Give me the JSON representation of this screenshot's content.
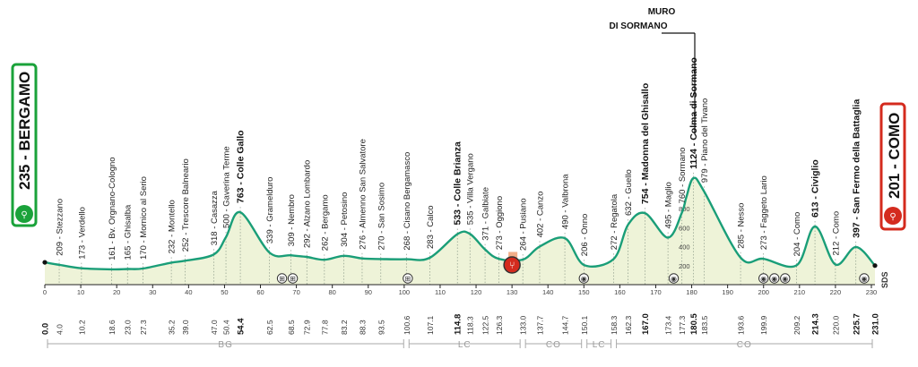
{
  "chart_data": {
    "type": "area",
    "title": "",
    "xlabel": "",
    "ylabel": "",
    "xlim": [
      0,
      231
    ],
    "ylim": [
      0,
      1200
    ],
    "grid": false,
    "colors": {
      "line": "#1a9e78",
      "fill": "#eef3d8",
      "feed_zone": "#f0a074",
      "feed_icon": "#d42b1e",
      "start_border": "#1aa23a",
      "finish_border": "#d42b1e"
    },
    "x_ticks": [
      0,
      10,
      20,
      30,
      40,
      50,
      60,
      70,
      80,
      90,
      100,
      110,
      120,
      130,
      140,
      150,
      160,
      170,
      180,
      190,
      200,
      210,
      220,
      230
    ],
    "y_ticks": [
      200,
      400,
      600,
      800
    ],
    "profile": [
      [
        0,
        235
      ],
      [
        4,
        209
      ],
      [
        10.2,
        173
      ],
      [
        18.6,
        161
      ],
      [
        23,
        165
      ],
      [
        27.3,
        170
      ],
      [
        35.2,
        232
      ],
      [
        39,
        252
      ],
      [
        47,
        318
      ],
      [
        50.4,
        500
      ],
      [
        54.4,
        763
      ],
      [
        62.5,
        339
      ],
      [
        68.5,
        309
      ],
      [
        72.9,
        292
      ],
      [
        77.8,
        262
      ],
      [
        83.2,
        304
      ],
      [
        88.3,
        276
      ],
      [
        93.5,
        270
      ],
      [
        100.6,
        268
      ],
      [
        107.1,
        283
      ],
      [
        114.8,
        533
      ],
      [
        118.3,
        535
      ],
      [
        122.5,
        371
      ],
      [
        126.3,
        273
      ],
      [
        133,
        264
      ],
      [
        137.7,
        402
      ],
      [
        144.7,
        490
      ],
      [
        150.1,
        206
      ],
      [
        158.3,
        272
      ],
      [
        162.3,
        632
      ],
      [
        167,
        754
      ],
      [
        173.4,
        495
      ],
      [
        177.3,
        760
      ],
      [
        178.5,
        920
      ],
      [
        180.5,
        1124
      ],
      [
        183.5,
        979
      ],
      [
        193.6,
        285
      ],
      [
        199.9,
        273
      ],
      [
        209.2,
        204
      ],
      [
        214.3,
        613
      ],
      [
        220,
        212
      ],
      [
        225.7,
        397
      ],
      [
        231,
        201
      ]
    ],
    "start": {
      "elevation": "235",
      "name": "BERGAMO"
    },
    "finish": {
      "elevation": "201",
      "name": "COMO"
    },
    "muro_line1": "MURO",
    "muro_line2": "DI SORMANO",
    "sds_label": "SDS",
    "feed_zone": [
      129,
      131.5
    ],
    "icon_markers": [
      [
        66,
        "⊞"
      ],
      [
        69,
        "⊞"
      ],
      [
        101,
        "⊞"
      ],
      [
        130,
        "ⓕ"
      ],
      [
        150,
        "◉"
      ],
      [
        175,
        "◉"
      ],
      [
        200,
        "◉"
      ],
      [
        203,
        "◉"
      ],
      [
        206,
        "◉"
      ],
      [
        228,
        "◉"
      ]
    ],
    "waypoints": [
      {
        "km": 4,
        "elev": 209,
        "text": "209 - Stezzano",
        "bold": false
      },
      {
        "km": 10.2,
        "elev": 173,
        "text": "173 - Verdello",
        "bold": false
      },
      {
        "km": 18.6,
        "elev": 161,
        "text": "161 - Bv. Orgnano-Cologno",
        "bold": false
      },
      {
        "km": 23,
        "elev": 165,
        "text": "165 - Ghisalba",
        "bold": false
      },
      {
        "km": 27.3,
        "elev": 170,
        "text": "170 - Mornico al Serio",
        "bold": false
      },
      {
        "km": 35.2,
        "elev": 232,
        "text": "232 - Montello",
        "bold": false
      },
      {
        "km": 39,
        "elev": 252,
        "text": "252 - Trescore Balneario",
        "bold": false
      },
      {
        "km": 47,
        "elev": 318,
        "text": "318 - Casazza",
        "bold": false
      },
      {
        "km": 50.4,
        "elev": 500,
        "text": "500 - Gaverina Terme",
        "bold": false
      },
      {
        "km": 54.4,
        "elev": 763,
        "text": "763 - Colle Gallo",
        "bold": true
      },
      {
        "km": 62.5,
        "elev": 339,
        "text": "339 - Gramelduro",
        "bold": false
      },
      {
        "km": 68.5,
        "elev": 309,
        "text": "309 - Nembro",
        "bold": false
      },
      {
        "km": 72.9,
        "elev": 292,
        "text": "292 - Alzano Lombardo",
        "bold": false
      },
      {
        "km": 77.8,
        "elev": 262,
        "text": "262 - Bergamo",
        "bold": false
      },
      {
        "km": 83.2,
        "elev": 304,
        "text": "304 - Petosino",
        "bold": false
      },
      {
        "km": 88.3,
        "elev": 276,
        "text": "276 - Almenno San Salvatore",
        "bold": false
      },
      {
        "km": 93.5,
        "elev": 270,
        "text": "270 - San Sosimo",
        "bold": false
      },
      {
        "km": 100.6,
        "elev": 268,
        "text": "268 - Cisano Bergamasco",
        "bold": false
      },
      {
        "km": 107.1,
        "elev": 283,
        "text": "283 - Calco",
        "bold": false
      },
      {
        "km": 114.8,
        "elev": 533,
        "text": "533 - Colle Brianza",
        "bold": true
      },
      {
        "km": 118.3,
        "elev": 535,
        "text": "535 - Villa Vergano",
        "bold": false
      },
      {
        "km": 122.5,
        "elev": 371,
        "text": "371 - Galbiate",
        "bold": false
      },
      {
        "km": 126.3,
        "elev": 273,
        "text": "273 - Oggiono",
        "bold": false
      },
      {
        "km": 133,
        "elev": 264,
        "text": "264 - Pusiano",
        "bold": false
      },
      {
        "km": 137.7,
        "elev": 402,
        "text": "402 - Canzo",
        "bold": false
      },
      {
        "km": 144.7,
        "elev": 490,
        "text": "490 - Valbrona",
        "bold": false
      },
      {
        "km": 150.1,
        "elev": 206,
        "text": "206 - Onno",
        "bold": false
      },
      {
        "km": 158.3,
        "elev": 272,
        "text": "272 - Regatola",
        "bold": false
      },
      {
        "km": 162.3,
        "elev": 632,
        "text": "632 - Guello",
        "bold": false
      },
      {
        "km": 167,
        "elev": 754,
        "text": "754 - Madonna del Ghisallo",
        "bold": true
      },
      {
        "km": 173.4,
        "elev": 495,
        "text": "495 - Maglio",
        "bold": false
      },
      {
        "km": 177.3,
        "elev": 760,
        "text": "760 - Sormano",
        "bold": false
      },
      {
        "km": 180.5,
        "elev": 1124,
        "text": "1124 - Colma di Sormano",
        "bold": true
      },
      {
        "km": 183.5,
        "elev": 979,
        "text": "979 - Piano del Tivano",
        "bold": false
      },
      {
        "km": 193.6,
        "elev": 285,
        "text": "285 - Nesso",
        "bold": false
      },
      {
        "km": 199.9,
        "elev": 273,
        "text": "273 - Faggeto Lario",
        "bold": false
      },
      {
        "km": 209.2,
        "elev": 204,
        "text": "204 - Como",
        "bold": false
      },
      {
        "km": 214.3,
        "elev": 613,
        "text": "613 - Civiglio",
        "bold": true
      },
      {
        "km": 220,
        "elev": 212,
        "text": "212 - Como",
        "bold": false
      },
      {
        "km": 225.7,
        "elev": 397,
        "text": "397 - San Fermo della Battaglia",
        "bold": true
      }
    ],
    "km_labels": [
      {
        "km": 0,
        "text": "0.0",
        "bold": true
      },
      {
        "km": 4,
        "text": "4.0",
        "bold": false
      },
      {
        "km": 10.2,
        "text": "10.2",
        "bold": false
      },
      {
        "km": 18.6,
        "text": "18.6",
        "bold": false
      },
      {
        "km": 23,
        "text": "23.0",
        "bold": false
      },
      {
        "km": 27.3,
        "text": "27.3",
        "bold": false
      },
      {
        "km": 35.2,
        "text": "35.2",
        "bold": false
      },
      {
        "km": 39,
        "text": "39.0",
        "bold": false
      },
      {
        "km": 47,
        "text": "47.0",
        "bold": false
      },
      {
        "km": 50.4,
        "text": "50.4",
        "bold": false
      },
      {
        "km": 54.4,
        "text": "54.4",
        "bold": true
      },
      {
        "km": 62.5,
        "text": "62.5",
        "bold": false
      },
      {
        "km": 68.5,
        "text": "68.5",
        "bold": false
      },
      {
        "km": 72.9,
        "text": "72.9",
        "bold": false
      },
      {
        "km": 77.8,
        "text": "77.8",
        "bold": false
      },
      {
        "km": 83.2,
        "text": "83.2",
        "bold": false
      },
      {
        "km": 88.3,
        "text": "88.3",
        "bold": false
      },
      {
        "km": 93.5,
        "text": "93.5",
        "bold": false
      },
      {
        "km": 100.6,
        "text": "100.6",
        "bold": false
      },
      {
        "km": 107.1,
        "text": "107.1",
        "bold": false
      },
      {
        "km": 114.8,
        "text": "114.8",
        "bold": true
      },
      {
        "km": 118.3,
        "text": "118.3",
        "bold": false
      },
      {
        "km": 122.5,
        "text": "122.5",
        "bold": false
      },
      {
        "km": 126.3,
        "text": "126.3",
        "bold": false
      },
      {
        "km": 133,
        "text": "133.0",
        "bold": false
      },
      {
        "km": 137.7,
        "text": "137.7",
        "bold": false
      },
      {
        "km": 144.7,
        "text": "144.7",
        "bold": false
      },
      {
        "km": 150.1,
        "text": "150.1",
        "bold": false
      },
      {
        "km": 158.3,
        "text": "158.3",
        "bold": false
      },
      {
        "km": 162.3,
        "text": "162.3",
        "bold": false
      },
      {
        "km": 167,
        "text": "167.0",
        "bold": true
      },
      {
        "km": 173.4,
        "text": "173.4",
        "bold": false
      },
      {
        "km": 177.3,
        "text": "177.3",
        "bold": false
      },
      {
        "km": 180.5,
        "text": "180.5",
        "bold": true
      },
      {
        "km": 183.5,
        "text": "183.5",
        "bold": false
      },
      {
        "km": 193.6,
        "text": "193.6",
        "bold": false
      },
      {
        "km": 199.9,
        "text": "199.9",
        "bold": false
      },
      {
        "km": 209.2,
        "text": "209.2",
        "bold": false
      },
      {
        "km": 214.3,
        "text": "214.3",
        "bold": true
      },
      {
        "km": 220,
        "text": "220.0",
        "bold": false
      },
      {
        "km": 225.7,
        "text": "225.7",
        "bold": true
      },
      {
        "km": 231,
        "text": "231.0",
        "bold": true
      }
    ],
    "provinces": [
      {
        "from": 0,
        "to": 100.6,
        "label": "BG"
      },
      {
        "from": 100.6,
        "to": 133,
        "label": "LC"
      },
      {
        "from": 133,
        "to": 150.1,
        "label": "CO"
      },
      {
        "from": 150.1,
        "to": 158.3,
        "label": "LC"
      },
      {
        "from": 158.3,
        "to": 231,
        "label": "CO"
      }
    ]
  }
}
